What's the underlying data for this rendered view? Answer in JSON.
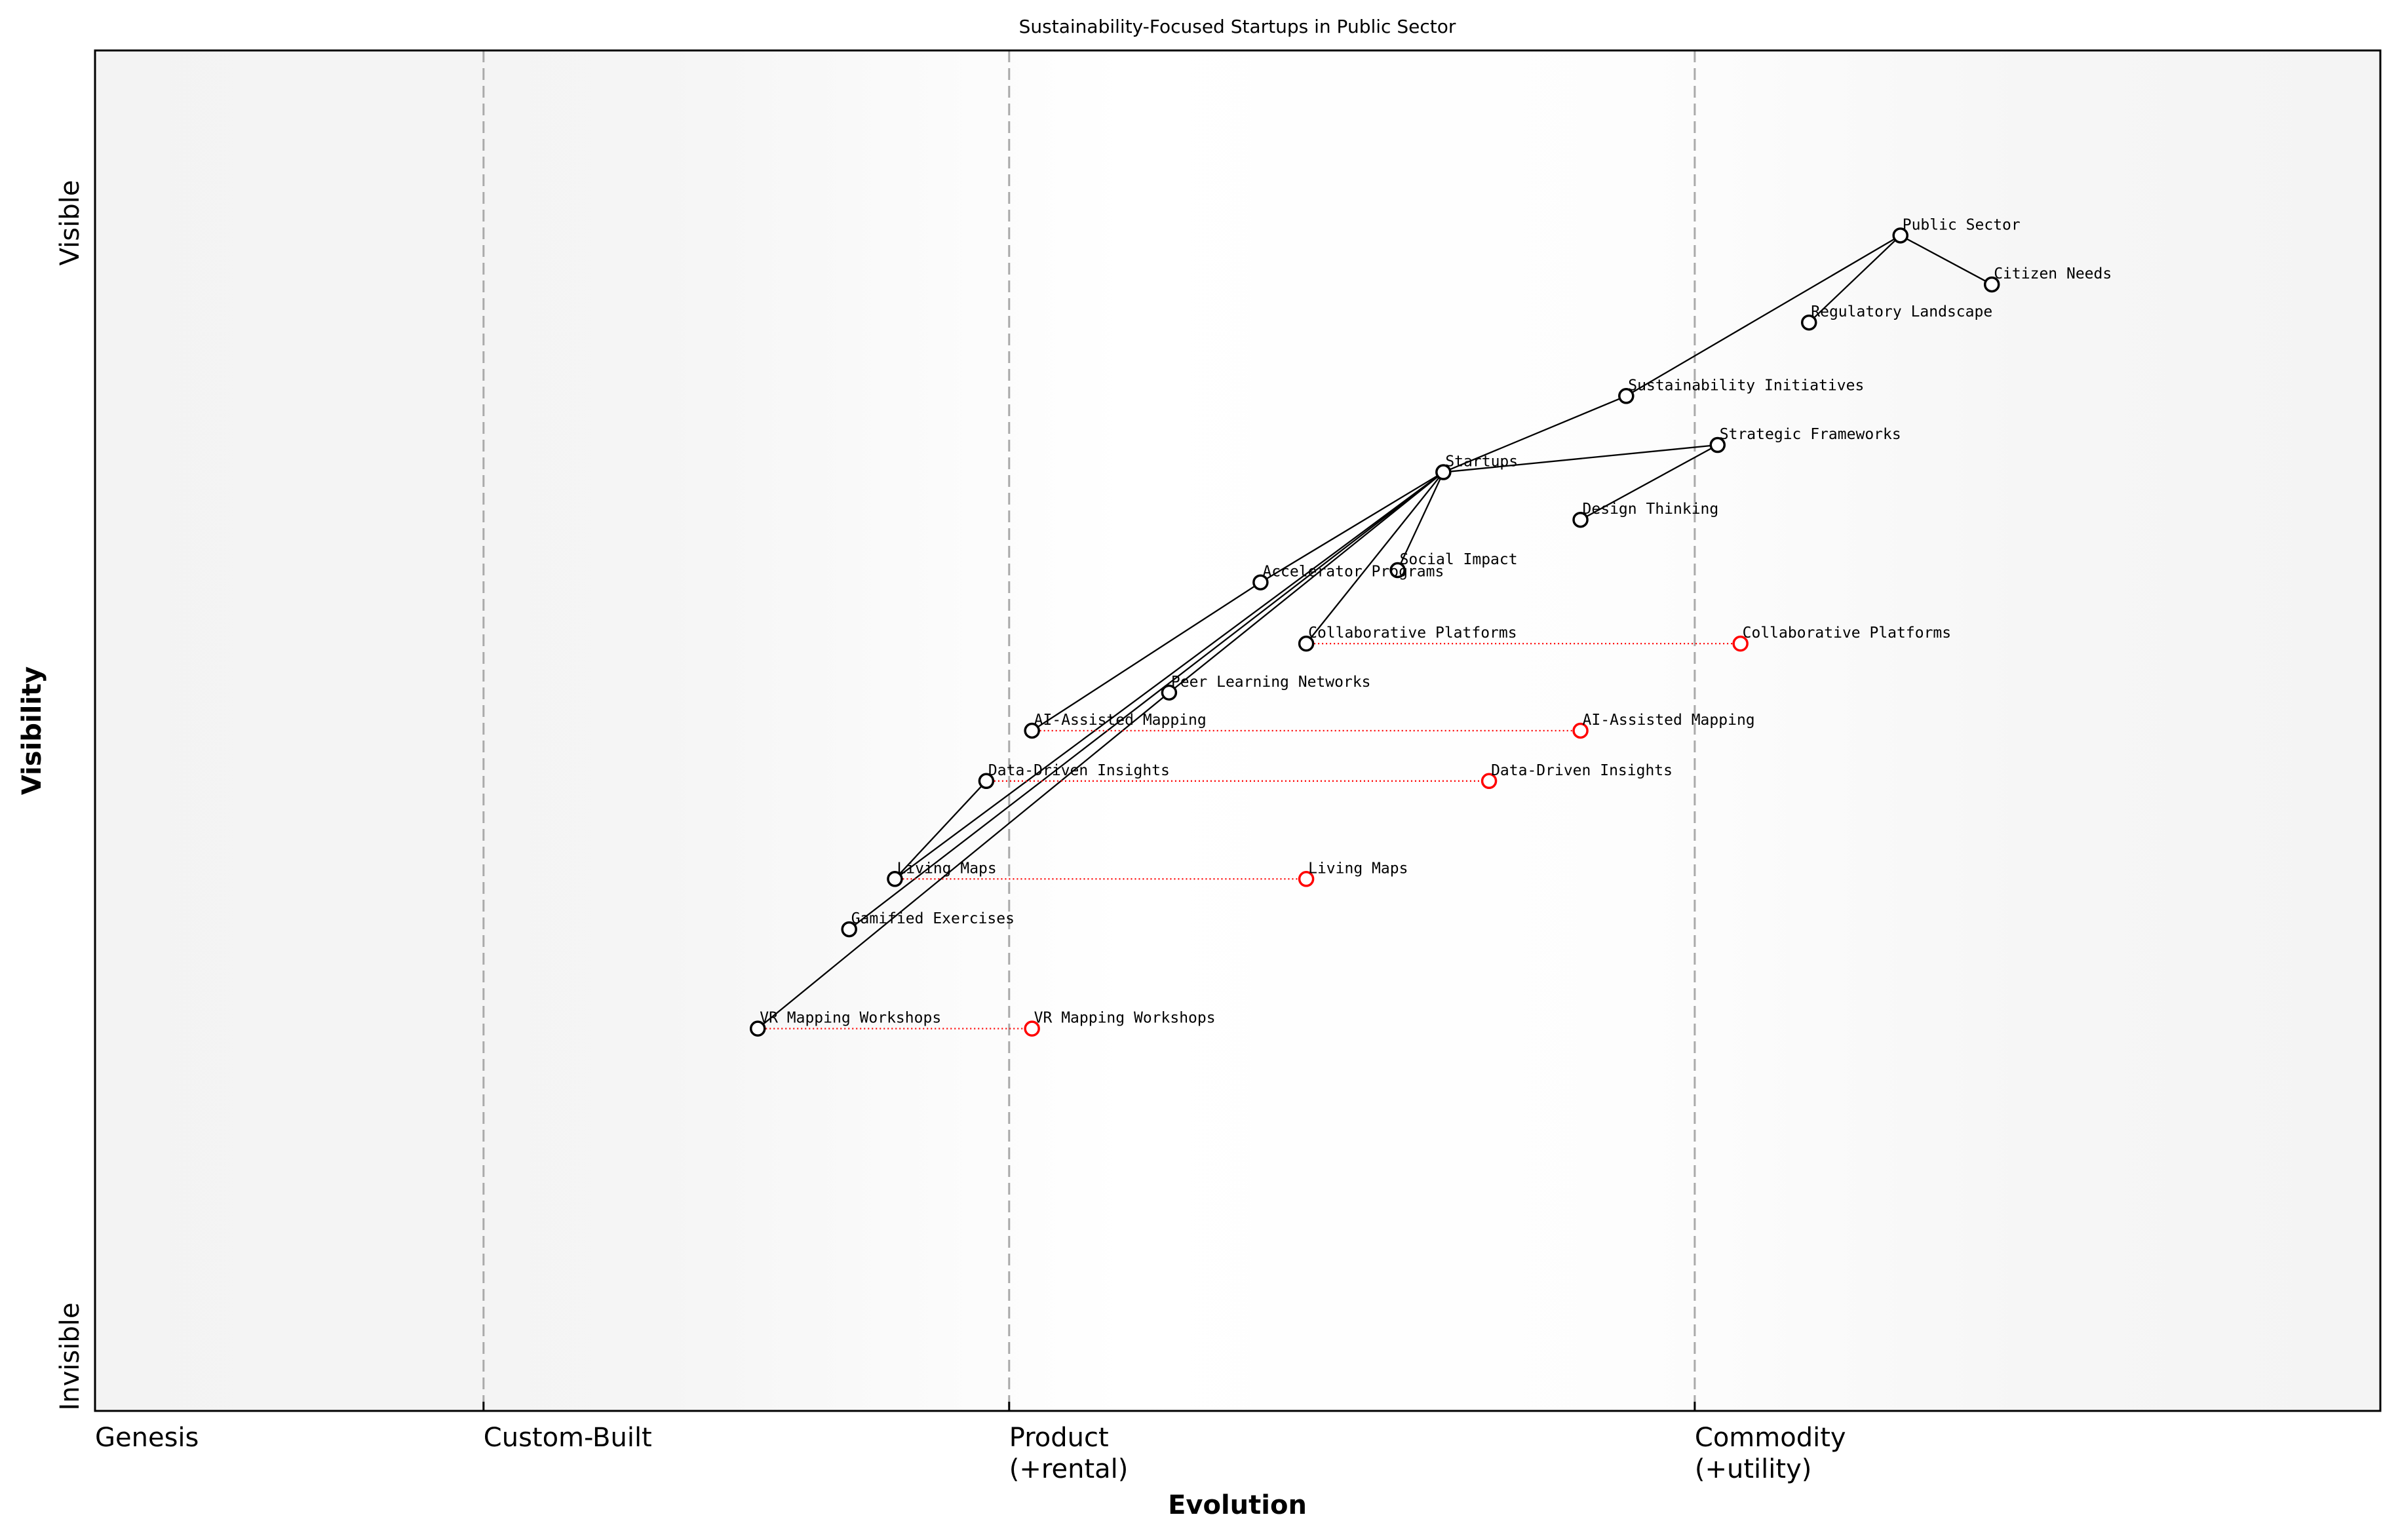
{
  "title": "Sustainability-Focused Startups in Public Sector",
  "x_axis": {
    "label": "Evolution",
    "stages": [
      {
        "lines": [
          "Genesis"
        ],
        "x": 0.0
      },
      {
        "lines": [
          "Custom-Built"
        ],
        "x": 0.17
      },
      {
        "lines": [
          "Product",
          "(+rental)"
        ],
        "x": 0.4
      },
      {
        "lines": [
          "Commodity",
          "(+utility)"
        ],
        "x": 0.7
      }
    ]
  },
  "y_axis": {
    "label": "Visibility",
    "top_label": "Visible",
    "bottom_label": "Invisible"
  },
  "colors": {
    "node": "#000000",
    "evolved": "#ff0000",
    "stage_line": "#aaaaaa",
    "band_edge": "#f3f3f3",
    "band_mid": "#ffffff"
  },
  "chart_data": {
    "type": "scatter",
    "xlim": [
      0,
      1
    ],
    "ylim": [
      0,
      1
    ],
    "components": [
      {
        "name": "Public Sector",
        "x": 0.79,
        "y": 0.864
      },
      {
        "name": "Citizen Needs",
        "x": 0.83,
        "y": 0.828
      },
      {
        "name": "Regulatory Landscape",
        "x": 0.75,
        "y": 0.8
      },
      {
        "name": "Sustainability Initiatives",
        "x": 0.67,
        "y": 0.746
      },
      {
        "name": "Strategic Frameworks",
        "x": 0.71,
        "y": 0.71
      },
      {
        "name": "Startups",
        "x": 0.59,
        "y": 0.69
      },
      {
        "name": "Design Thinking",
        "x": 0.65,
        "y": 0.655
      },
      {
        "name": "Social Impact",
        "x": 0.57,
        "y": 0.618
      },
      {
        "name": "Accelerator Programs",
        "x": 0.51,
        "y": 0.609
      },
      {
        "name": "Collaborative Platforms",
        "x": 0.53,
        "y": 0.564
      },
      {
        "name": "Peer Learning Networks",
        "x": 0.47,
        "y": 0.528
      },
      {
        "name": "AI-Assisted Mapping",
        "x": 0.41,
        "y": 0.5
      },
      {
        "name": "Data-Driven Insights",
        "x": 0.39,
        "y": 0.463
      },
      {
        "name": "Living Maps",
        "x": 0.35,
        "y": 0.391
      },
      {
        "name": "Gamified Exercises",
        "x": 0.33,
        "y": 0.354
      },
      {
        "name": "VR Mapping Workshops",
        "x": 0.29,
        "y": 0.281
      }
    ],
    "links": [
      [
        "Public Sector",
        "Citizen Needs"
      ],
      [
        "Public Sector",
        "Regulatory Landscape"
      ],
      [
        "Public Sector",
        "Sustainability Initiatives"
      ],
      [
        "Sustainability Initiatives",
        "Startups"
      ],
      [
        "Startups",
        "Strategic Frameworks"
      ],
      [
        "Strategic Frameworks",
        "Design Thinking"
      ],
      [
        "Startups",
        "Social Impact"
      ],
      [
        "Startups",
        "Collaborative Platforms"
      ],
      [
        "Startups",
        "Accelerator Programs"
      ],
      [
        "Accelerator Programs",
        "AI-Assisted Mapping"
      ],
      [
        "Startups",
        "Peer Learning Networks"
      ],
      [
        "Peer Learning Networks",
        "VR Mapping Workshops"
      ],
      [
        "Startups",
        "Living Maps"
      ],
      [
        "Startups",
        "Gamified Exercises"
      ],
      [
        "Living Maps",
        "Data-Driven Insights"
      ]
    ],
    "evolutions": [
      {
        "name": "Collaborative Platforms",
        "to_x": 0.72
      },
      {
        "name": "AI-Assisted Mapping",
        "to_x": 0.65
      },
      {
        "name": "Data-Driven Insights",
        "to_x": 0.61
      },
      {
        "name": "Living Maps",
        "to_x": 0.53
      },
      {
        "name": "VR Mapping Workshops",
        "to_x": 0.41
      }
    ]
  }
}
